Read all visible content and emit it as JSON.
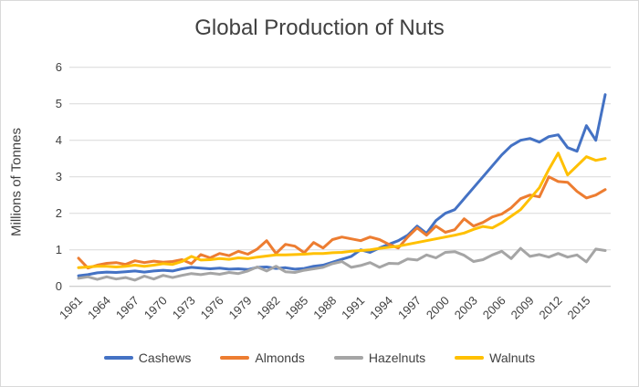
{
  "frame": {
    "border_color": "#D9D9D9",
    "background": "#FFFFFF",
    "text_color": "#404040",
    "gridline_color": "#D9D9D9",
    "axis_line_color": "#BFBFBF"
  },
  "chart_data": {
    "type": "line",
    "title": "Global Production of Nuts",
    "ylabel": "Millions of Tonnes",
    "xlabel": "",
    "ylim": [
      0,
      6
    ],
    "yticks": [
      0,
      1,
      2,
      3,
      4,
      5,
      6
    ],
    "grid": true,
    "legend_position": "bottom",
    "x_start_year": 1961,
    "x_end_year": 2017,
    "xtick_labels": [
      "1961",
      "1964",
      "1967",
      "1970",
      "1973",
      "1976",
      "1979",
      "1982",
      "1985",
      "1988",
      "1991",
      "1994",
      "1997",
      "2000",
      "2003",
      "2006",
      "2009",
      "2012",
      "2015"
    ],
    "series": [
      {
        "name": "Cashews",
        "color": "#4472C4",
        "values": [
          0.29,
          0.32,
          0.37,
          0.39,
          0.38,
          0.4,
          0.42,
          0.39,
          0.42,
          0.44,
          0.42,
          0.48,
          0.52,
          0.5,
          0.48,
          0.5,
          0.47,
          0.48,
          0.46,
          0.52,
          0.53,
          0.49,
          0.51,
          0.47,
          0.49,
          0.55,
          0.58,
          0.66,
          0.74,
          0.82,
          1.0,
          0.93,
          1.05,
          1.15,
          1.25,
          1.4,
          1.65,
          1.45,
          1.8,
          2.0,
          2.1,
          2.4,
          2.7,
          3.0,
          3.3,
          3.6,
          3.85,
          4.0,
          4.05,
          3.95,
          4.1,
          4.15,
          3.8,
          3.7,
          4.4,
          4.0,
          5.25
        ]
      },
      {
        "name": "Almonds",
        "color": "#ED7D31",
        "values": [
          0.77,
          0.5,
          0.58,
          0.63,
          0.65,
          0.6,
          0.7,
          0.65,
          0.69,
          0.66,
          0.68,
          0.73,
          0.62,
          0.87,
          0.78,
          0.9,
          0.84,
          0.96,
          0.88,
          1.02,
          1.25,
          0.9,
          1.15,
          1.1,
          0.92,
          1.2,
          1.05,
          1.28,
          1.35,
          1.3,
          1.25,
          1.35,
          1.28,
          1.15,
          1.05,
          1.35,
          1.6,
          1.4,
          1.65,
          1.48,
          1.55,
          1.85,
          1.65,
          1.75,
          1.9,
          1.98,
          2.15,
          2.4,
          2.5,
          2.45,
          3.0,
          2.87,
          2.85,
          2.6,
          2.42,
          2.5,
          2.65
        ]
      },
      {
        "name": "Hazelnuts",
        "color": "#A5A5A5",
        "values": [
          0.22,
          0.26,
          0.19,
          0.26,
          0.2,
          0.24,
          0.17,
          0.28,
          0.2,
          0.3,
          0.24,
          0.3,
          0.35,
          0.32,
          0.36,
          0.33,
          0.38,
          0.35,
          0.42,
          0.53,
          0.42,
          0.55,
          0.4,
          0.38,
          0.44,
          0.48,
          0.52,
          0.62,
          0.68,
          0.52,
          0.57,
          0.65,
          0.52,
          0.63,
          0.62,
          0.75,
          0.72,
          0.86,
          0.78,
          0.93,
          0.95,
          0.85,
          0.68,
          0.73,
          0.86,
          0.96,
          0.76,
          1.04,
          0.82,
          0.87,
          0.8,
          0.9,
          0.8,
          0.86,
          0.67,
          1.02,
          0.98
        ]
      },
      {
        "name": "Walnuts",
        "color": "#FFC000",
        "values": [
          0.51,
          0.53,
          0.55,
          0.55,
          0.53,
          0.55,
          0.58,
          0.55,
          0.58,
          0.62,
          0.6,
          0.68,
          0.82,
          0.72,
          0.73,
          0.76,
          0.74,
          0.78,
          0.76,
          0.8,
          0.83,
          0.86,
          0.86,
          0.87,
          0.88,
          0.9,
          0.9,
          0.92,
          0.93,
          0.96,
          0.98,
          1.0,
          1.04,
          1.07,
          1.1,
          1.15,
          1.2,
          1.25,
          1.3,
          1.35,
          1.4,
          1.46,
          1.56,
          1.64,
          1.6,
          1.74,
          1.92,
          2.1,
          2.4,
          2.7,
          3.2,
          3.65,
          3.05,
          3.3,
          3.55,
          3.45,
          3.5
        ]
      }
    ]
  }
}
